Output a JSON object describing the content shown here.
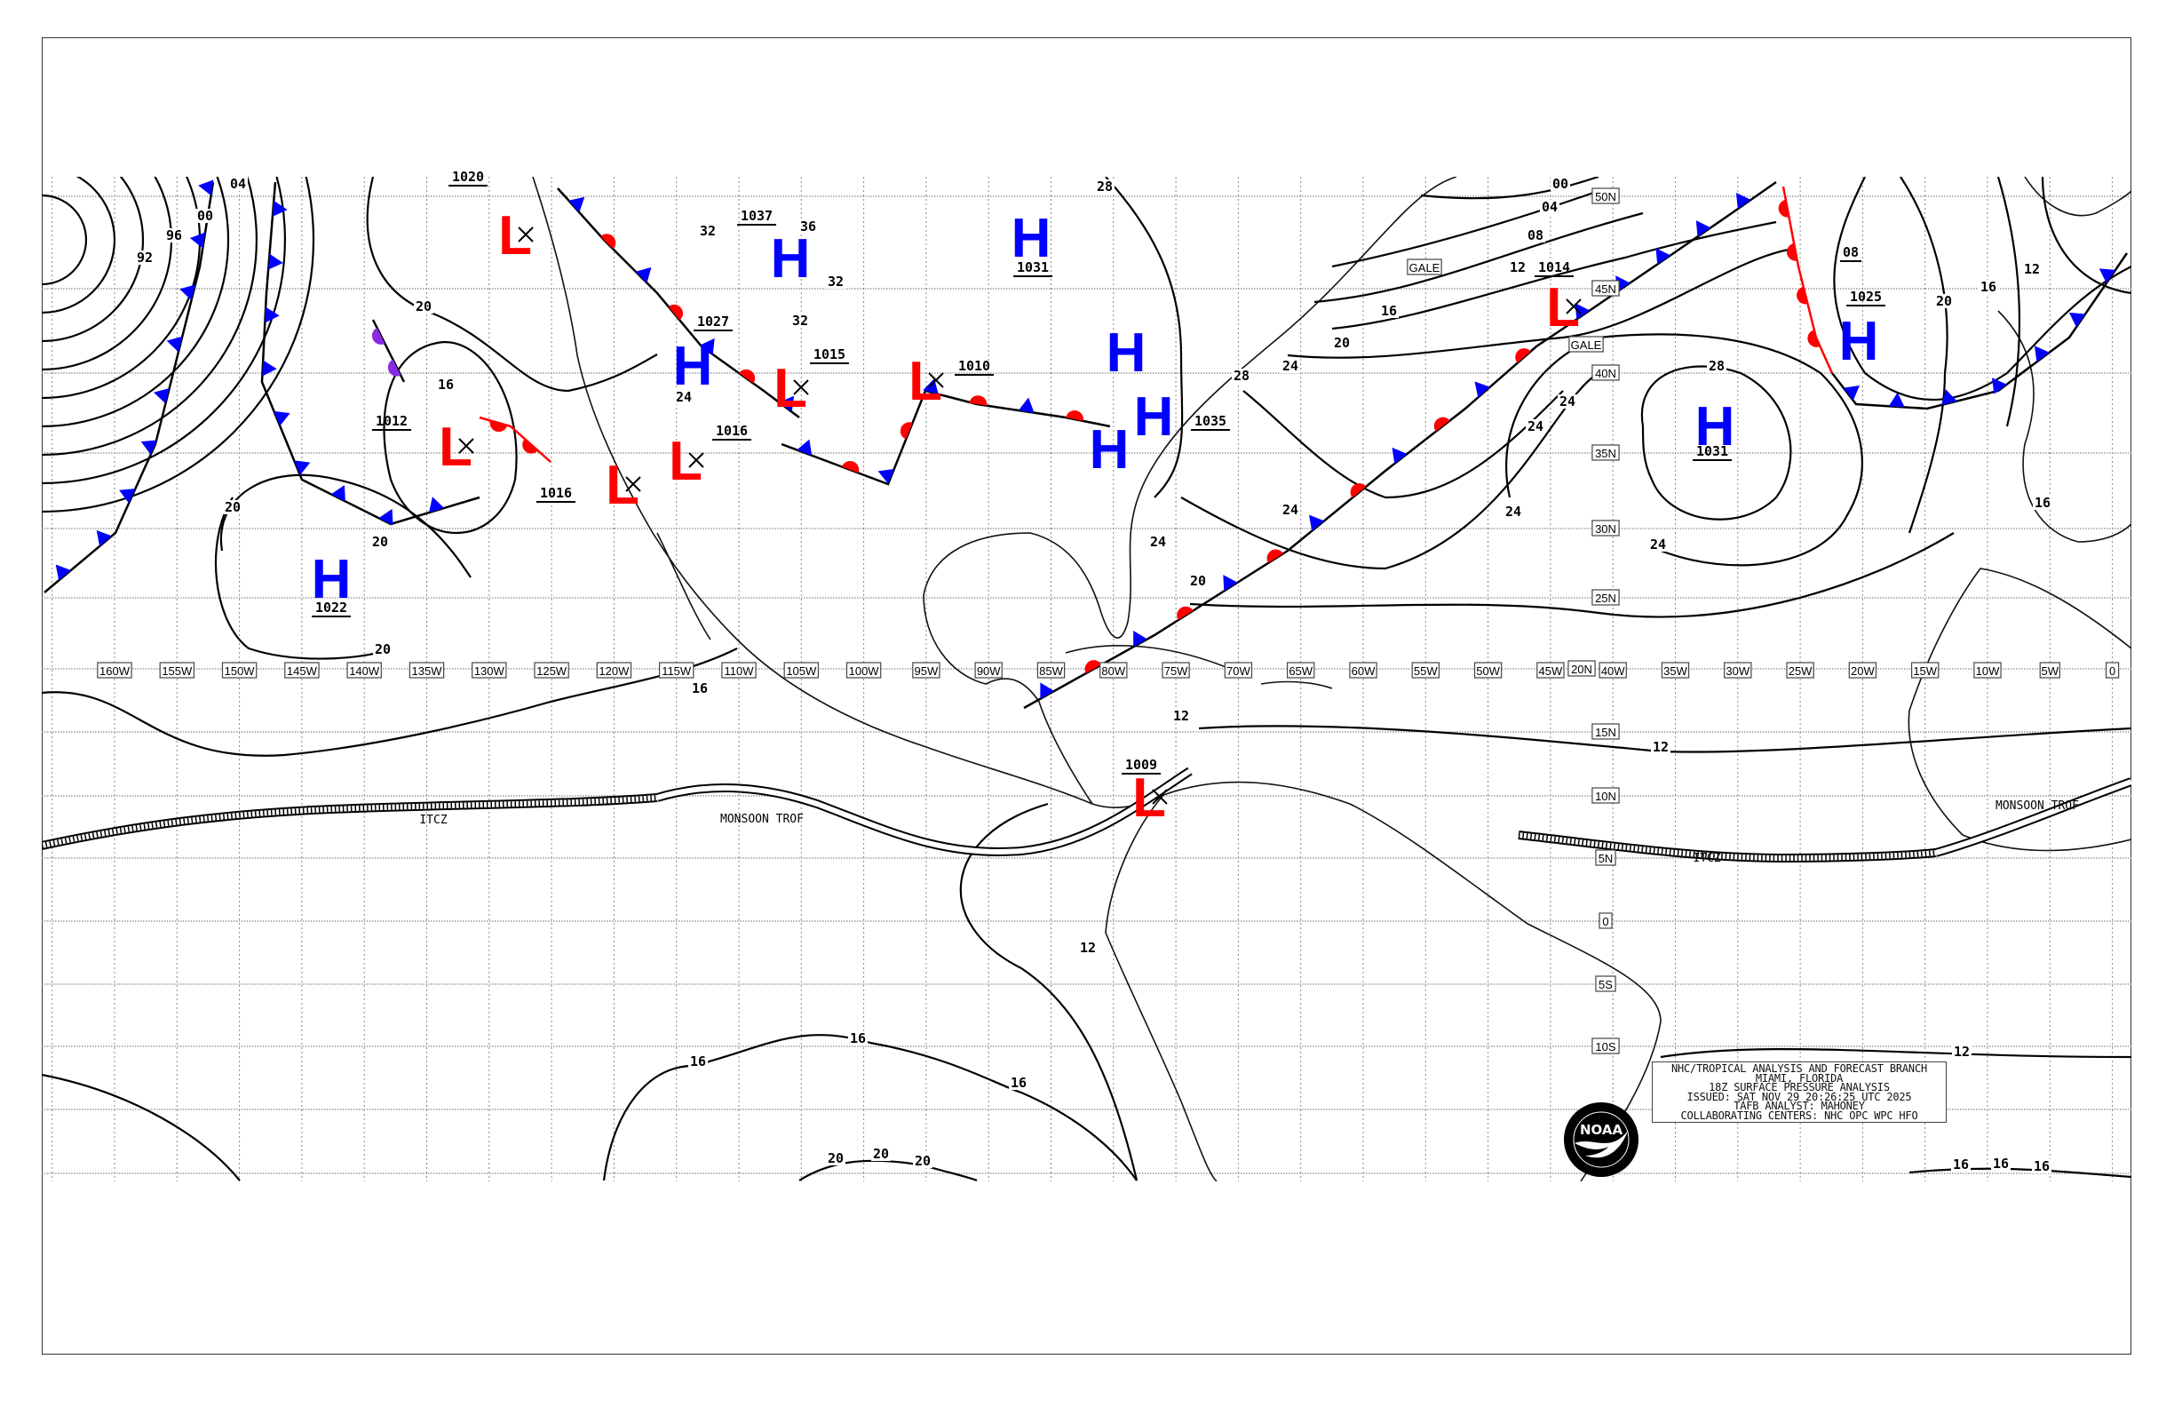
{
  "map": {
    "title_block": {
      "lines": [
        "NHC/TROPICAL ANALYSIS AND FORECAST BRANCH",
        "MIAMI, FLORIDA",
        "18Z SURFACE PRESSURE ANALYSIS",
        "ISSUED: SAT NOV 29 20:26:25 UTC 2025",
        "TAFB ANALYST: MAHONEY",
        "COLLABORATING CENTERS: NHC OPC WPC HFO"
      ]
    },
    "agency_logo": {
      "text": "NOAA",
      "ring_text": "NATIONAL OCEANIC AND ATMOSPHERIC ADMINISTRATION U.S. DEPARTMENT OF COMMERCE"
    },
    "lon_labels": [
      "160W",
      "155W",
      "150W",
      "145W",
      "140W",
      "135W",
      "130W",
      "125W",
      "120W",
      "115W",
      "110W",
      "105W",
      "100W",
      "95W",
      "90W",
      "85W",
      "80W",
      "75W",
      "70W",
      "65W",
      "60W",
      "55W",
      "50W",
      "45W",
      "40W",
      "35W",
      "30W",
      "25W",
      "20W",
      "15W",
      "10W",
      "5W",
      "0"
    ],
    "lat_labels": [
      "50N",
      "45N",
      "40N",
      "35N",
      "30N",
      "25N",
      "20N",
      "15N",
      "10N",
      "5N",
      "0",
      "5S",
      "10S"
    ],
    "pressure_centers": [
      {
        "type": "L",
        "pressure": "1020"
      },
      {
        "type": "L",
        "pressure": "1012"
      },
      {
        "type": "L",
        "pressure": "1016"
      },
      {
        "type": "L",
        "pressure": "1016"
      },
      {
        "type": "H",
        "pressure": "1022"
      },
      {
        "type": "H",
        "pressure": "1027"
      },
      {
        "type": "H",
        "pressure": "1037"
      },
      {
        "type": "L",
        "pressure": "1015"
      },
      {
        "type": "L",
        "pressure": "1010"
      },
      {
        "type": "H",
        "pressure": "1031"
      },
      {
        "type": "H",
        "pressure": ""
      },
      {
        "type": "H",
        "pressure": "1035"
      },
      {
        "type": "H",
        "pressure": ""
      },
      {
        "type": "L",
        "pressure": "1014"
      },
      {
        "type": "H",
        "pressure": "1031"
      },
      {
        "type": "H",
        "pressure": "1025"
      },
      {
        "type": "L",
        "pressure": "1009"
      }
    ],
    "isobar_labels": [
      "04",
      "00",
      "96",
      "92",
      "20",
      "16",
      "20",
      "20",
      "20",
      "16",
      "12",
      "12",
      "12",
      "16",
      "16",
      "16",
      "20",
      "20",
      "20",
      "24",
      "32",
      "36",
      "32",
      "32",
      "28",
      "00",
      "04",
      "08",
      "12",
      "16",
      "20",
      "24",
      "28",
      "24",
      "24",
      "24",
      "24",
      "28",
      "24",
      "24",
      "20",
      "20",
      "16",
      "12",
      "12",
      "16",
      "16",
      "16",
      "16",
      "08"
    ],
    "annotations": {
      "gale": [
        "GALE",
        "GALE"
      ],
      "itcz": [
        "ITCZ",
        "ITCZ"
      ],
      "monsoon_trough": [
        "MONSOON TROF",
        "MONSOON TROF"
      ]
    },
    "colors": {
      "high": "#0000ff",
      "low": "#ff0000",
      "cold_front": "#0000ff",
      "warm_front": "#ff0000",
      "occluded": "#8a2be2",
      "isobar": "#000000",
      "grid": "#888888"
    }
  }
}
